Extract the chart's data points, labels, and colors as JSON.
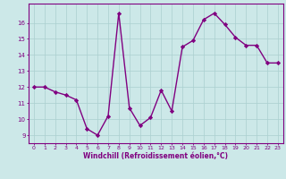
{
  "x": [
    0,
    1,
    2,
    3,
    4,
    5,
    6,
    7,
    8,
    9,
    10,
    11,
    12,
    13,
    14,
    15,
    16,
    17,
    18,
    19,
    20,
    21,
    22,
    23
  ],
  "y": [
    12.0,
    12.0,
    11.7,
    11.5,
    11.2,
    9.4,
    9.0,
    10.2,
    16.6,
    10.7,
    9.6,
    10.1,
    11.8,
    10.5,
    14.5,
    14.9,
    16.2,
    16.6,
    15.9,
    15.1,
    14.6,
    14.6,
    13.5,
    13.5
  ],
  "line_color": "#800080",
  "marker": "D",
  "marker_size": 2.2,
  "bg_color": "#cce8e8",
  "grid_color": "#aacfcf",
  "xlabel": "Windchill (Refroidissement éolien,°C)",
  "xlim": [
    -0.5,
    23.5
  ],
  "ylim": [
    8.5,
    17.2
  ],
  "yticks": [
    9,
    10,
    11,
    12,
    13,
    14,
    15,
    16
  ],
  "xticks": [
    0,
    1,
    2,
    3,
    4,
    5,
    6,
    7,
    8,
    9,
    10,
    11,
    12,
    13,
    14,
    15,
    16,
    17,
    18,
    19,
    20,
    21,
    22,
    23
  ],
  "tick_color": "#800080",
  "label_color": "#800080",
  "axis_color": "#800080",
  "line_width": 1.0
}
